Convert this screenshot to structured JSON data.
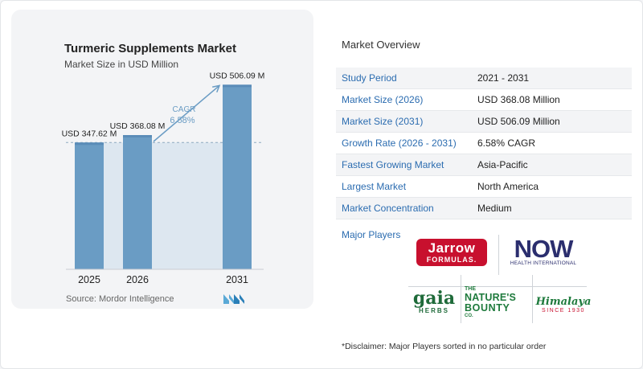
{
  "chart_data": {
    "type": "bar",
    "title": "Turmeric Supplements Market",
    "subtitle": "Market Size in USD Million",
    "categories": [
      "2025",
      "2026",
      "2031"
    ],
    "values": [
      347.62,
      368.08,
      506.09
    ],
    "data_labels": [
      "USD 347.62 M",
      "USD 368.08 M",
      "USD 506.09 M"
    ],
    "cagr_label": "CAGR",
    "cagr_value": "6.58%",
    "bar_color": "#6a9cc4",
    "bar_top_color": "#5a8cb8",
    "band_color": "#dde7f0",
    "ylim": [
      0,
      540
    ],
    "grid": false,
    "legend": "none"
  },
  "source": "Source:  Mordor Intelligence",
  "overview": {
    "title": "Market Overview",
    "rows": [
      {
        "key": "Study Period",
        "value": "2021 - 2031"
      },
      {
        "key": "Market Size (2026)",
        "value": "USD 368.08 Million"
      },
      {
        "key": "Market Size (2031)",
        "value": "USD 506.09 Million"
      },
      {
        "key": "Growth Rate (2026 - 2031)",
        "value": "6.58% CAGR"
      },
      {
        "key": "Fastest Growing Market",
        "value": "Asia-Pacific"
      },
      {
        "key": "Largest Market",
        "value": "North America"
      },
      {
        "key": "Market Concentration",
        "value": "Medium"
      }
    ],
    "players_label": "Major Players"
  },
  "logos": {
    "jarrow_a": "Jarrow",
    "jarrow_b": "FORMULAS.",
    "now_a": "NOW",
    "now_b": "HEALTH INTERNATIONAL",
    "gaia_a": "gaia",
    "gaia_b": "HERBS",
    "nb_t1": "THE",
    "nb_t2": "NATURE'S",
    "nb_t3": "BOUNTY",
    "nb_t4": "CO.",
    "him_a": "Himalaya",
    "him_b": "SINCE 1930"
  },
  "disclaimer": "*Disclaimer: Major Players sorted in no particular order"
}
